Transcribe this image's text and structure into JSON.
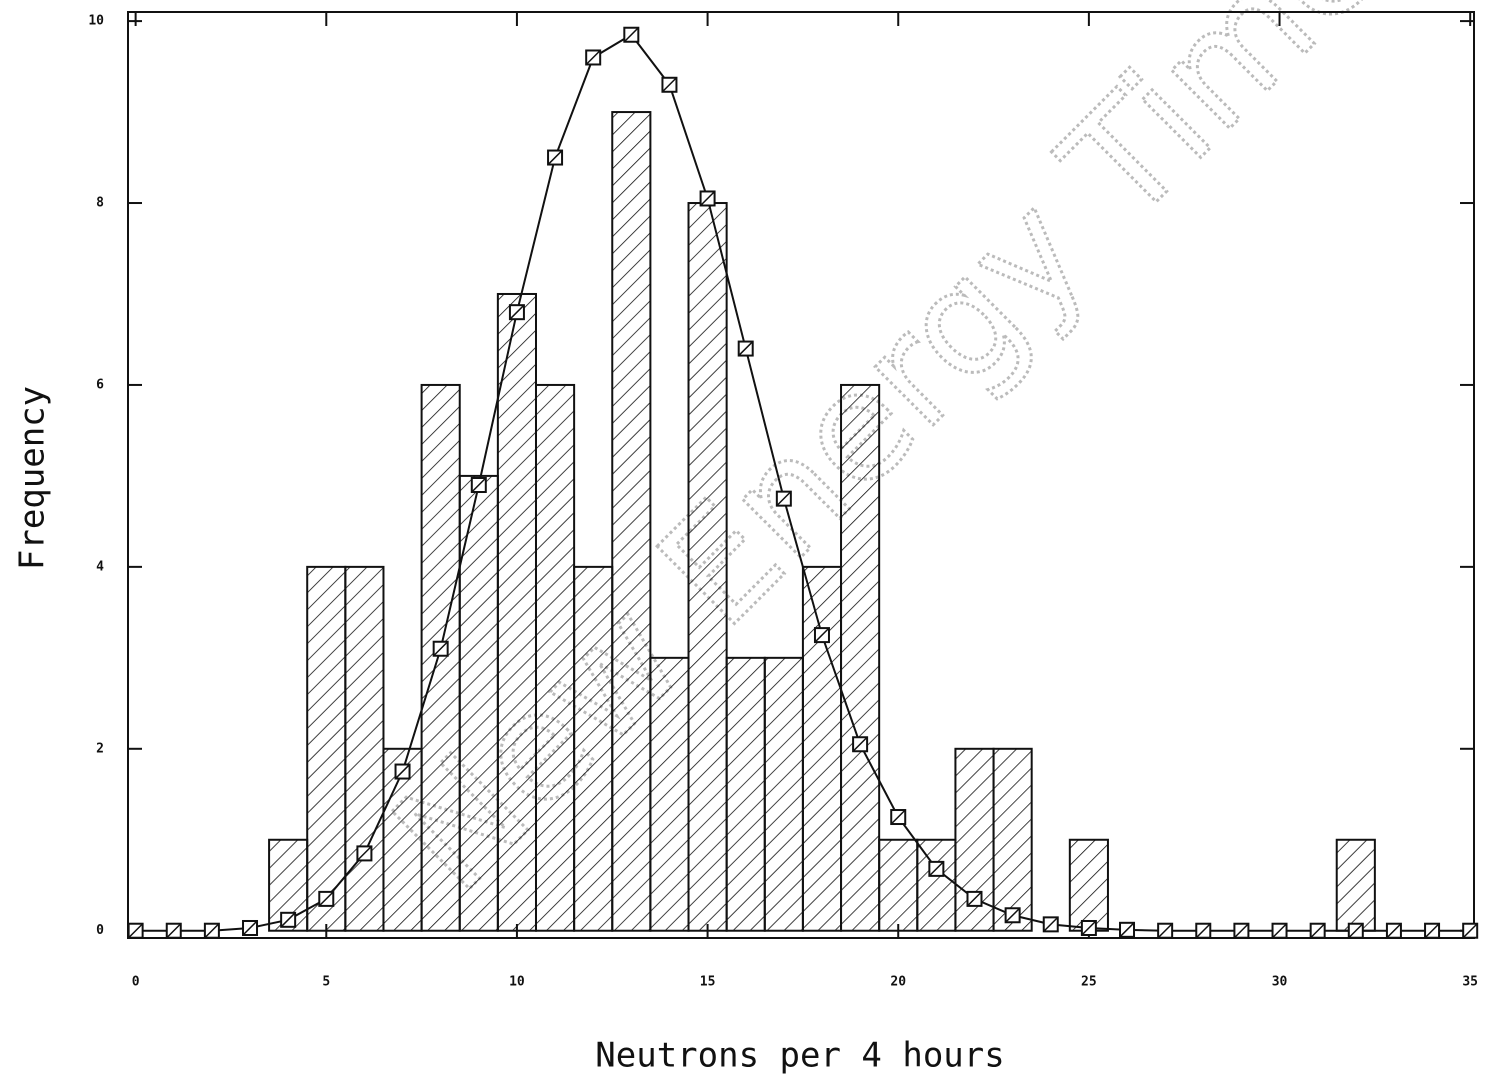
{
  "chart_data": {
    "type": "histogram",
    "x_label": "Neutrons per 4 hours",
    "y_label": "Frequency",
    "watermark": "New Energy Times",
    "bins": [
      3.5,
      4.5,
      5.5,
      6.5,
      7.5,
      8.5,
      9.5,
      10.5,
      11.5,
      12.5,
      13.5,
      14.5,
      15.5,
      16.5,
      17.5,
      18.5,
      19.5,
      20.5,
      21.5,
      22.5,
      23.5,
      24.5,
      25.5,
      26.5,
      27.5,
      28.5,
      29.5,
      30.5,
      31.5,
      32.5
    ],
    "counts": [
      1,
      4,
      4,
      2,
      6,
      5,
      7,
      6,
      4,
      9,
      3,
      8,
      3,
      3,
      4,
      6,
      1,
      1,
      2,
      2,
      0,
      1,
      0,
      0,
      0,
      0,
      0,
      0,
      1
    ],
    "curve": {
      "x": [
        0,
        1,
        2,
        3,
        4,
        5,
        6,
        7,
        8,
        9,
        10,
        11,
        12,
        13,
        14,
        15,
        16,
        17,
        18,
        19,
        20,
        21,
        22,
        23,
        24,
        25,
        26,
        27,
        28,
        29,
        30,
        31,
        32,
        33,
        34,
        35
      ],
      "values": [
        0,
        0,
        0,
        0.03,
        0.12,
        0.35,
        0.85,
        1.75,
        3.1,
        4.9,
        6.8,
        8.5,
        9.6,
        9.85,
        9.3,
        8.05,
        6.4,
        4.75,
        3.25,
        2.05,
        1.25,
        0.68,
        0.35,
        0.17,
        0.07,
        0.03,
        0.01,
        0,
        0,
        0,
        0,
        0,
        0,
        0,
        0,
        0
      ]
    },
    "color": "#111111",
    "hatch": true,
    "xlim": [
      -0.2,
      35.1
    ],
    "xticks": [
      0,
      5,
      10,
      15,
      20,
      25,
      30,
      35
    ],
    "ylim": [
      -0.08,
      10.1
    ],
    "yticks": [
      0,
      2,
      4,
      6,
      8,
      10
    ]
  }
}
